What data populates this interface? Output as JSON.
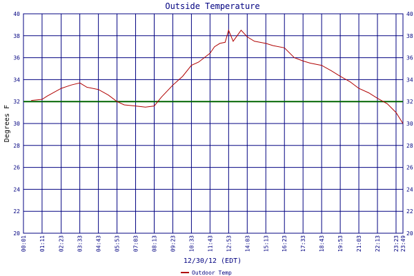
{
  "chart_data": {
    "type": "line",
    "title": "Outside Temperature",
    "xlabel": "12/30/12 (EDT)",
    "ylabel": "Degrees F",
    "ylim": [
      20,
      40
    ],
    "yticks": [
      20,
      22,
      24,
      26,
      28,
      30,
      32,
      34,
      36,
      38,
      40
    ],
    "xticks": [
      "00:01",
      "01:11",
      "02:23",
      "03:33",
      "04:43",
      "05:53",
      "07:03",
      "08:13",
      "09:23",
      "10:33",
      "11:43",
      "12:53",
      "14:03",
      "15:13",
      "16:23",
      "17:33",
      "18:43",
      "19:53",
      "21:03",
      "22:13",
      "23:23",
      "23:49"
    ],
    "grid": true,
    "legend": "bottom-left",
    "colors": {
      "series": "#b00000",
      "freezing_line": "#006400",
      "grid": "#000080",
      "text": "#000080"
    },
    "reference_line": {
      "y": 32
    },
    "series": [
      {
        "name": "Outdoor Temp",
        "x": [
          "00:30",
          "01:11",
          "01:30",
          "02:00",
          "02:23",
          "03:00",
          "03:33",
          "04:00",
          "04:43",
          "05:20",
          "05:53",
          "06:20",
          "07:03",
          "07:40",
          "08:13",
          "08:40",
          "09:23",
          "10:00",
          "10:33",
          "11:00",
          "11:43",
          "12:00",
          "12:20",
          "12:40",
          "12:53",
          "13:10",
          "13:40",
          "14:03",
          "14:30",
          "15:13",
          "15:40",
          "16:23",
          "17:00",
          "17:33",
          "18:00",
          "18:43",
          "19:20",
          "19:53",
          "20:30",
          "21:03",
          "21:40",
          "22:13",
          "22:50",
          "23:23",
          "23:49"
        ],
        "values": [
          32.1,
          32.2,
          32.5,
          32.9,
          33.2,
          33.5,
          33.7,
          33.3,
          33.1,
          32.6,
          32.0,
          31.7,
          31.6,
          31.5,
          31.6,
          32.4,
          33.5,
          34.3,
          35.3,
          35.6,
          36.4,
          37.0,
          37.3,
          37.4,
          38.5,
          37.5,
          38.5,
          37.9,
          37.5,
          37.3,
          37.1,
          36.9,
          36.0,
          35.7,
          35.5,
          35.3,
          34.8,
          34.3,
          33.8,
          33.2,
          32.8,
          32.3,
          31.8,
          31.0,
          30.0
        ]
      }
    ]
  }
}
